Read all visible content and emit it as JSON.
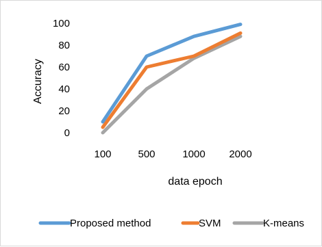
{
  "chart_data": {
    "type": "line",
    "categories": [
      "100",
      "500",
      "1000",
      "2000"
    ],
    "xlabel": "data epoch",
    "ylabel": "Accuracy",
    "ylim": [
      0,
      100
    ],
    "yticks": [
      "0",
      "20",
      "40",
      "60",
      "80",
      "100"
    ],
    "grid": false,
    "legend_position": "bottom",
    "series": [
      {
        "name": "Proposed method",
        "color": "#5b9bd5",
        "values": [
          10,
          70,
          88,
          99
        ]
      },
      {
        "name": "SVM",
        "color": "#ed7d31",
        "values": [
          5,
          60,
          70,
          91
        ]
      },
      {
        "name": "K-means",
        "color": "#a5a5a5",
        "values": [
          0,
          40,
          68,
          88
        ]
      }
    ]
  }
}
